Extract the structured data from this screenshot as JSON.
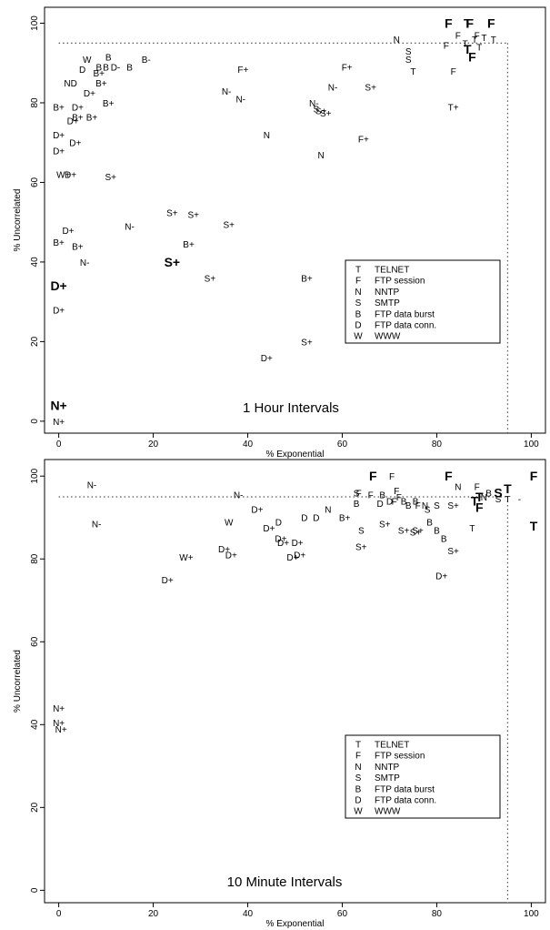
{
  "chart_data": [
    {
      "type": "scatter",
      "title": "1 Hour Intervals",
      "xlabel": "% Exponential",
      "ylabel": "% Uncorrelated",
      "xlim": [
        -3,
        103
      ],
      "ylim": [
        -3,
        104
      ],
      "xticks": [
        0,
        20,
        40,
        60,
        80,
        100
      ],
      "yticks": [
        0,
        20,
        40,
        60,
        80,
        100
      ],
      "grid": false,
      "threshold": 95,
      "legend_position": "lower-right",
      "legend": [
        {
          "symbol": "T",
          "label": "TELNET"
        },
        {
          "symbol": "F",
          "label": "FTP session"
        },
        {
          "symbol": "N",
          "label": "NNTP"
        },
        {
          "symbol": "S",
          "label": "SMTP"
        },
        {
          "symbol": "B",
          "label": "FTP data burst"
        },
        {
          "symbol": "D",
          "label": "FTP data conn."
        },
        {
          "symbol": "W",
          "label": "WWW"
        }
      ],
      "points": [
        {
          "label": "F",
          "x": 82.5,
          "y": 100,
          "bold": true
        },
        {
          "label": "T",
          "x": 86.5,
          "y": 100,
          "bold": true
        },
        {
          "label": "F",
          "x": 87,
          "y": 100,
          "bold": true
        },
        {
          "label": "F",
          "x": 91.5,
          "y": 100,
          "bold": true
        },
        {
          "label": "F",
          "x": 84.5,
          "y": 97
        },
        {
          "label": "F",
          "x": 88.5,
          "y": 97
        },
        {
          "label": "T",
          "x": 90,
          "y": 96.5
        },
        {
          "label": "T",
          "x": 88,
          "y": 96
        },
        {
          "label": "T",
          "x": 92,
          "y": 96
        },
        {
          "label": "T",
          "x": 86,
          "y": 95
        },
        {
          "label": "T",
          "x": 89,
          "y": 94
        },
        {
          "label": "F",
          "x": 82,
          "y": 94.5
        },
        {
          "label": "T",
          "x": 86.5,
          "y": 93.5,
          "bold": true
        },
        {
          "label": "F",
          "x": 87.5,
          "y": 91.5,
          "bold": true
        },
        {
          "label": "N",
          "x": 71.5,
          "y": 96
        },
        {
          "label": "S",
          "x": 74,
          "y": 93
        },
        {
          "label": "S",
          "x": 74,
          "y": 91
        },
        {
          "label": "T",
          "x": 75,
          "y": 88
        },
        {
          "label": "F",
          "x": 83.5,
          "y": 88
        },
        {
          "label": "T+",
          "x": 83.5,
          "y": 79
        },
        {
          "label": "F+",
          "x": 39,
          "y": 88.5
        },
        {
          "label": "F+",
          "x": 61,
          "y": 89
        },
        {
          "label": "N-",
          "x": 58,
          "y": 84
        },
        {
          "label": "S+",
          "x": 66,
          "y": 84
        },
        {
          "label": "N-",
          "x": 35.5,
          "y": 83
        },
        {
          "label": "N-",
          "x": 38.5,
          "y": 81
        },
        {
          "label": "N-",
          "x": 54,
          "y": 80
        },
        {
          "label": "S",
          "x": 54.5,
          "y": 78.5
        },
        {
          "label": "S+",
          "x": 55.5,
          "y": 78
        },
        {
          "label": "S+",
          "x": 56.5,
          "y": 77.5
        },
        {
          "label": "N",
          "x": 44,
          "y": 72
        },
        {
          "label": "F+",
          "x": 64.5,
          "y": 71
        },
        {
          "label": "N",
          "x": 55.5,
          "y": 67
        },
        {
          "label": "W",
          "x": 6,
          "y": 91
        },
        {
          "label": "B",
          "x": 10.5,
          "y": 91.5
        },
        {
          "label": "B-",
          "x": 18.5,
          "y": 91
        },
        {
          "label": "D",
          "x": 5,
          "y": 88.5
        },
        {
          "label": "B",
          "x": 8.5,
          "y": 89
        },
        {
          "label": "B",
          "x": 10,
          "y": 89
        },
        {
          "label": "D-",
          "x": 12,
          "y": 89
        },
        {
          "label": "B",
          "x": 15,
          "y": 89
        },
        {
          "label": "B+",
          "x": 8.5,
          "y": 87.5
        },
        {
          "label": "ND",
          "x": 2.5,
          "y": 85
        },
        {
          "label": "B+",
          "x": 9,
          "y": 85
        },
        {
          "label": "D+",
          "x": 6.5,
          "y": 82.5
        },
        {
          "label": "B+",
          "x": 0,
          "y": 79
        },
        {
          "label": "D+",
          "x": 4,
          "y": 79
        },
        {
          "label": "B+",
          "x": 10.5,
          "y": 80
        },
        {
          "label": "B+",
          "x": 4,
          "y": 76.5
        },
        {
          "label": "B+",
          "x": 7,
          "y": 76.5
        },
        {
          "label": "D+",
          "x": 3,
          "y": 75.5
        },
        {
          "label": "D+",
          "x": 0,
          "y": 72
        },
        {
          "label": "D+",
          "x": 3.5,
          "y": 70
        },
        {
          "label": "D+",
          "x": 0,
          "y": 68
        },
        {
          "label": "W+",
          "x": 1,
          "y": 62
        },
        {
          "label": "D+",
          "x": 2.5,
          "y": 62
        },
        {
          "label": "S+",
          "x": 11,
          "y": 61.5
        },
        {
          "label": "S+",
          "x": 24,
          "y": 52.5
        },
        {
          "label": "S+",
          "x": 28.5,
          "y": 52
        },
        {
          "label": "S+",
          "x": 36,
          "y": 49.5
        },
        {
          "label": "N-",
          "x": 15,
          "y": 49
        },
        {
          "label": "D+",
          "x": 2,
          "y": 48
        },
        {
          "label": "B+",
          "x": 0,
          "y": 45
        },
        {
          "label": "B+",
          "x": 4,
          "y": 44
        },
        {
          "label": "B+",
          "x": 27.5,
          "y": 44.5
        },
        {
          "label": "N-",
          "x": 5.5,
          "y": 40
        },
        {
          "label": "S+",
          "x": 24,
          "y": 40,
          "bold": true
        },
        {
          "label": "S+",
          "x": 32,
          "y": 36
        },
        {
          "label": "B+",
          "x": 52.5,
          "y": 36
        },
        {
          "label": "D+",
          "x": 0,
          "y": 34,
          "bold": true
        },
        {
          "label": "D+",
          "x": 0,
          "y": 28
        },
        {
          "label": "S+",
          "x": 52.5,
          "y": 20
        },
        {
          "label": "D+",
          "x": 44,
          "y": 16
        },
        {
          "label": "N+",
          "x": 0,
          "y": 4,
          "bold": true
        },
        {
          "label": "N+",
          "x": 0,
          "y": 0
        }
      ]
    },
    {
      "type": "scatter",
      "title": "10 Minute Intervals",
      "xlabel": "% Exponential",
      "ylabel": "% Uncorrelated",
      "xlim": [
        -3,
        103
      ],
      "ylim": [
        -3,
        104
      ],
      "xticks": [
        0,
        20,
        40,
        60,
        80,
        100
      ],
      "yticks": [
        0,
        20,
        40,
        60,
        80,
        100
      ],
      "grid": false,
      "threshold": 95,
      "legend_position": "lower-right",
      "legend": [
        {
          "symbol": "T",
          "label": "TELNET"
        },
        {
          "symbol": "F",
          "label": "FTP session"
        },
        {
          "symbol": "N",
          "label": "NNTP"
        },
        {
          "symbol": "S",
          "label": "SMTP"
        },
        {
          "symbol": "B",
          "label": "FTP data burst"
        },
        {
          "symbol": "D",
          "label": "FTP data conn."
        },
        {
          "symbol": "W",
          "label": "WWW"
        }
      ],
      "points": [
        {
          "label": "F",
          "x": 66.5,
          "y": 100,
          "bold": true
        },
        {
          "label": "F",
          "x": 70.5,
          "y": 100
        },
        {
          "label": "F",
          "x": 82.5,
          "y": 100,
          "bold": true
        },
        {
          "label": "F",
          "x": 100.5,
          "y": 100,
          "bold": true
        },
        {
          "label": "T",
          "x": 95,
          "y": 97,
          "bold": true
        },
        {
          "label": "N-",
          "x": 7,
          "y": 98
        },
        {
          "label": "N",
          "x": 84.5,
          "y": 97.5
        },
        {
          "label": "F",
          "x": 88.5,
          "y": 97.5
        },
        {
          "label": "F",
          "x": 71.5,
          "y": 96.5
        },
        {
          "label": "S",
          "x": 63,
          "y": 96
        },
        {
          "label": "F",
          "x": 63.5,
          "y": 96
        },
        {
          "label": "N-",
          "x": 38,
          "y": 95.5
        },
        {
          "label": "F",
          "x": 66,
          "y": 95.5
        },
        {
          "label": "B",
          "x": 68.5,
          "y": 95.5
        },
        {
          "label": "F",
          "x": 72,
          "y": 95
        },
        {
          "label": "B",
          "x": 91,
          "y": 96
        },
        {
          "label": "S",
          "x": 93,
          "y": 96,
          "bold": true
        },
        {
          "label": "N",
          "x": 90,
          "y": 95
        },
        {
          "label": "T",
          "x": 89,
          "y": 95,
          "bold": true
        },
        {
          "label": "S",
          "x": 93,
          "y": 94.5
        },
        {
          "label": "T",
          "x": 88,
          "y": 94,
          "bold": true
        },
        {
          "label": "T",
          "x": 95,
          "y": 94.5
        },
        {
          "label": "-",
          "x": 97.5,
          "y": 94.5
        },
        {
          "label": "F",
          "x": 89,
          "y": 92.5,
          "bold": true
        },
        {
          "label": "D",
          "x": 70,
          "y": 94
        },
        {
          "label": "F",
          "x": 71,
          "y": 94
        },
        {
          "label": "B",
          "x": 73,
          "y": 94
        },
        {
          "label": "B",
          "x": 75.5,
          "y": 94
        },
        {
          "label": "B",
          "x": 63,
          "y": 93.5
        },
        {
          "label": "D",
          "x": 68,
          "y": 93.5
        },
        {
          "label": "B",
          "x": 74,
          "y": 93
        },
        {
          "label": "F",
          "x": 76,
          "y": 93
        },
        {
          "label": "N",
          "x": 77.5,
          "y": 93
        },
        {
          "label": "S",
          "x": 80,
          "y": 93
        },
        {
          "label": "S+",
          "x": 83.5,
          "y": 93
        },
        {
          "label": "S",
          "x": 78,
          "y": 92
        },
        {
          "label": "D+",
          "x": 42,
          "y": 92
        },
        {
          "label": "N",
          "x": 57,
          "y": 92
        },
        {
          "label": "D",
          "x": 52,
          "y": 90
        },
        {
          "label": "D",
          "x": 54.5,
          "y": 90
        },
        {
          "label": "B+",
          "x": 60.5,
          "y": 90
        },
        {
          "label": "W",
          "x": 36,
          "y": 89
        },
        {
          "label": "D",
          "x": 46.5,
          "y": 89
        },
        {
          "label": "N-",
          "x": 8,
          "y": 88.5
        },
        {
          "label": "S+",
          "x": 69,
          "y": 88.5
        },
        {
          "label": "B",
          "x": 78.5,
          "y": 89
        },
        {
          "label": "D+",
          "x": 44.5,
          "y": 87.5
        },
        {
          "label": "S",
          "x": 64,
          "y": 87
        },
        {
          "label": "S+",
          "x": 73,
          "y": 87
        },
        {
          "label": "S+",
          "x": 75.5,
          "y": 86.5
        },
        {
          "label": "S+",
          "x": 76,
          "y": 87
        },
        {
          "label": "B",
          "x": 80,
          "y": 87
        },
        {
          "label": "T",
          "x": 87.5,
          "y": 87.5
        },
        {
          "label": "T",
          "x": 100.5,
          "y": 88,
          "bold": true
        },
        {
          "label": "B",
          "x": 81.5,
          "y": 85
        },
        {
          "label": "D+",
          "x": 47,
          "y": 85
        },
        {
          "label": "D+",
          "x": 47.5,
          "y": 84
        },
        {
          "label": "D+",
          "x": 50.5,
          "y": 84
        },
        {
          "label": "S+",
          "x": 64,
          "y": 83
        },
        {
          "label": "S+",
          "x": 83.5,
          "y": 82
        },
        {
          "label": "D+",
          "x": 35,
          "y": 82.5
        },
        {
          "label": "D+",
          "x": 36.5,
          "y": 81
        },
        {
          "label": "D+",
          "x": 51,
          "y": 81
        },
        {
          "label": "D+",
          "x": 49.5,
          "y": 80.5
        },
        {
          "label": "W+",
          "x": 27,
          "y": 80.5
        },
        {
          "label": "D+",
          "x": 81,
          "y": 76
        },
        {
          "label": "D+",
          "x": 23,
          "y": 75
        },
        {
          "label": "N+",
          "x": 0,
          "y": 44
        },
        {
          "label": "N+",
          "x": 0,
          "y": 40.5
        },
        {
          "label": "N+",
          "x": 0.5,
          "y": 39
        }
      ]
    }
  ]
}
